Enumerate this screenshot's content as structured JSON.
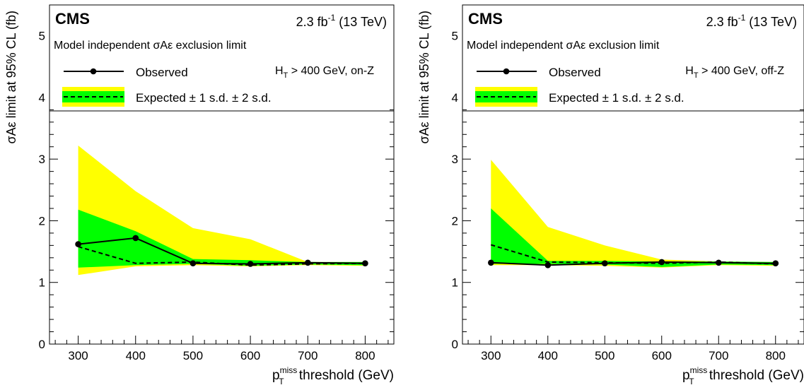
{
  "chart_data": [
    {
      "type": "line",
      "experiment": "CMS",
      "lumi": {
        "value": "2.3 fb",
        "exponent": "-1",
        "energy": "(13 TeV)"
      },
      "subtitle": "Model independent σAε exclusion limit",
      "selection": {
        "main": "H",
        "sub": "T",
        "rest": " > 400 GeV, on-Z"
      },
      "xlabel": {
        "main": "p",
        "sub": "T",
        "sup": "miss",
        "rest": " threshold (GeV)"
      },
      "ylabel": "σAε limit at 95% CL (fb)",
      "xlim": [
        250,
        850
      ],
      "ylim": [
        0,
        5.5
      ],
      "frame_ylim": [
        0,
        3.8
      ],
      "xticks": [
        300,
        400,
        500,
        600,
        700,
        800
      ],
      "yticks": [
        0,
        1,
        2,
        3,
        4,
        5
      ],
      "legend": {
        "observed": "Observed",
        "expected": "Expected ± 1 s.d. ± 2 s.d."
      },
      "colors": {
        "band_2sd": "#ffff00",
        "band_1sd": "#00ff00",
        "line": "#000000"
      },
      "x": [
        300,
        400,
        500,
        600,
        700,
        800
      ],
      "observed": [
        1.62,
        1.72,
        1.31,
        1.3,
        1.32,
        1.31
      ],
      "expected": [
        1.58,
        1.31,
        1.33,
        1.28,
        1.3,
        1.31
      ],
      "band_1sd": {
        "low": [
          1.24,
          1.28,
          1.3,
          1.27,
          1.29,
          1.28
        ],
        "high": [
          2.18,
          1.83,
          1.38,
          1.36,
          1.33,
          1.33
        ]
      },
      "band_2sd": {
        "low": [
          1.12,
          1.26,
          1.28,
          1.26,
          1.28,
          1.27
        ],
        "high": [
          3.22,
          2.48,
          1.88,
          1.7,
          1.33,
          1.33
        ]
      }
    },
    {
      "type": "line",
      "experiment": "CMS",
      "lumi": {
        "value": "2.3 fb",
        "exponent": "-1",
        "energy": "(13 TeV)"
      },
      "subtitle": "Model independent σAε exclusion limit",
      "selection": {
        "main": "H",
        "sub": "T",
        "rest": " > 400 GeV, off-Z"
      },
      "xlabel": {
        "main": "p",
        "sub": "T",
        "sup": "miss",
        "rest": " threshold (GeV)"
      },
      "ylabel": "σAε limit at 95% CL (fb)",
      "xlim": [
        250,
        850
      ],
      "ylim": [
        0,
        5.5
      ],
      "frame_ylim": [
        0,
        3.8
      ],
      "xticks": [
        300,
        400,
        500,
        600,
        700,
        800
      ],
      "yticks": [
        0,
        1,
        2,
        3,
        4,
        5
      ],
      "legend": {
        "observed": "Observed",
        "expected": "Expected ± 1 s.d. ± 2 s.d."
      },
      "colors": {
        "band_2sd": "#ffff00",
        "band_1sd": "#00ff00",
        "line": "#000000"
      },
      "x": [
        300,
        400,
        500,
        600,
        700,
        800
      ],
      "observed": [
        1.32,
        1.28,
        1.31,
        1.33,
        1.32,
        1.31
      ],
      "expected": [
        1.61,
        1.33,
        1.32,
        1.31,
        1.33,
        1.3
      ],
      "band_1sd": {
        "low": [
          1.3,
          1.3,
          1.29,
          1.25,
          1.29,
          1.28
        ],
        "high": [
          2.2,
          1.35,
          1.35,
          1.34,
          1.34,
          1.33
        ]
      },
      "band_2sd": {
        "low": [
          1.28,
          1.28,
          1.27,
          1.24,
          1.28,
          1.27
        ],
        "high": [
          2.99,
          1.9,
          1.6,
          1.37,
          1.34,
          1.33
        ]
      }
    }
  ]
}
